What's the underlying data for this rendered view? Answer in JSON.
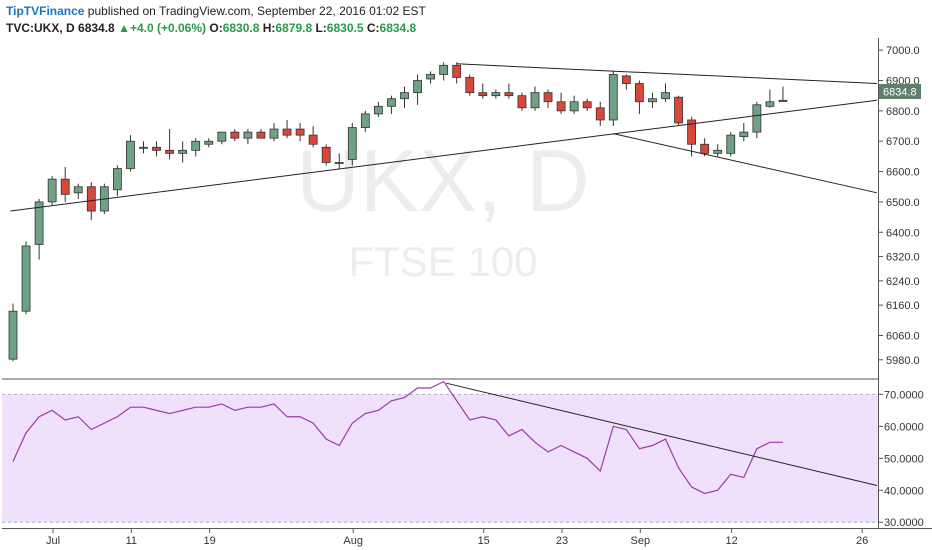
{
  "header": {
    "publisher": "TipTVFinance",
    "published_text": " published on TradingView.com, September 22, 2016 01:02 EST",
    "symbol": "TVC:UKX, D",
    "last": "6834.8",
    "change_icon": "triangle-up-icon",
    "change": "+4.0 (+0.06%)",
    "o_label": "O:",
    "o_val": "6830.8",
    "h_label": "H:",
    "h_val": "6879.8",
    "l_label": "L:",
    "l_val": "6830.5",
    "c_label": "C:",
    "c_val": "6834.8"
  },
  "watermark": {
    "title": "UKX, D",
    "subtitle": "FTSE 100"
  },
  "price_label": "6834.8",
  "colors": {
    "up": "#6fa285",
    "down": "#d9473b",
    "rsi_line": "#9e3aa8",
    "rsi_band": "#efe0fb",
    "last_label": "#5f7f6a"
  },
  "chart_data": [
    {
      "type": "candlestick",
      "title": "UKX, D",
      "subtitle": "FTSE 100",
      "ylim": [
        5920,
        7040
      ],
      "y_ticks": [
        "7000.0",
        "6900.0",
        "6800.0",
        "6700.0",
        "6600.0",
        "6500.0",
        "6400.0",
        "6320.0",
        "6240.0",
        "6160.0",
        "6060.0",
        "5980.0"
      ],
      "x_ticks": [
        {
          "label": "Jul",
          "index": 1
        },
        {
          "label": "11",
          "index": 7
        },
        {
          "label": "19",
          "index": 13
        },
        {
          "label": "Aug",
          "index": 24
        },
        {
          "label": "15",
          "index": 34
        },
        {
          "label": "23",
          "index": 40
        },
        {
          "label": "Sep",
          "index": 46
        },
        {
          "label": "12",
          "index": 53
        },
        {
          "label": "26",
          "index": 63
        }
      ],
      "candles": [
        {
          "o": 5982,
          "h": 6165,
          "l": 5975,
          "c": 6140
        },
        {
          "o": 6140,
          "h": 6370,
          "l": 6130,
          "c": 6355
        },
        {
          "o": 6360,
          "h": 6510,
          "l": 6310,
          "c": 6500
        },
        {
          "o": 6500,
          "h": 6585,
          "l": 6490,
          "c": 6575
        },
        {
          "o": 6575,
          "h": 6615,
          "l": 6500,
          "c": 6525
        },
        {
          "o": 6530,
          "h": 6560,
          "l": 6510,
          "c": 6550
        },
        {
          "o": 6550,
          "h": 6565,
          "l": 6440,
          "c": 6470
        },
        {
          "o": 6470,
          "h": 6560,
          "l": 6460,
          "c": 6550
        },
        {
          "o": 6540,
          "h": 6620,
          "l": 6520,
          "c": 6610
        },
        {
          "o": 6610,
          "h": 6720,
          "l": 6600,
          "c": 6700
        },
        {
          "o": 6680,
          "h": 6700,
          "l": 6660,
          "c": 6680
        },
        {
          "o": 6680,
          "h": 6700,
          "l": 6650,
          "c": 6670
        },
        {
          "o": 6670,
          "h": 6740,
          "l": 6640,
          "c": 6660
        },
        {
          "o": 6660,
          "h": 6700,
          "l": 6630,
          "c": 6670
        },
        {
          "o": 6670,
          "h": 6710,
          "l": 6650,
          "c": 6700
        },
        {
          "o": 6690,
          "h": 6710,
          "l": 6680,
          "c": 6700
        },
        {
          "o": 6700,
          "h": 6730,
          "l": 6690,
          "c": 6730
        },
        {
          "o": 6730,
          "h": 6740,
          "l": 6700,
          "c": 6710
        },
        {
          "o": 6710,
          "h": 6740,
          "l": 6690,
          "c": 6730
        },
        {
          "o": 6730,
          "h": 6740,
          "l": 6710,
          "c": 6710
        },
        {
          "o": 6710,
          "h": 6760,
          "l": 6700,
          "c": 6740
        },
        {
          "o": 6740,
          "h": 6770,
          "l": 6710,
          "c": 6720
        },
        {
          "o": 6740,
          "h": 6760,
          "l": 6700,
          "c": 6720
        },
        {
          "o": 6720,
          "h": 6750,
          "l": 6680,
          "c": 6690
        },
        {
          "o": 6680,
          "h": 6690,
          "l": 6620,
          "c": 6630
        },
        {
          "o": 6630,
          "h": 6660,
          "l": 6610,
          "c": 6630
        },
        {
          "o": 6640,
          "h": 6760,
          "l": 6620,
          "c": 6745
        },
        {
          "o": 6745,
          "h": 6800,
          "l": 6730,
          "c": 6790
        },
        {
          "o": 6790,
          "h": 6830,
          "l": 6780,
          "c": 6815
        },
        {
          "o": 6815,
          "h": 6850,
          "l": 6790,
          "c": 6840
        },
        {
          "o": 6840,
          "h": 6880,
          "l": 6810,
          "c": 6860
        },
        {
          "o": 6860,
          "h": 6920,
          "l": 6820,
          "c": 6900
        },
        {
          "o": 6905,
          "h": 6930,
          "l": 6890,
          "c": 6920
        },
        {
          "o": 6920,
          "h": 6960,
          "l": 6900,
          "c": 6950
        },
        {
          "o": 6950,
          "h": 6960,
          "l": 6890,
          "c": 6910
        },
        {
          "o": 6910,
          "h": 6920,
          "l": 6850,
          "c": 6860
        },
        {
          "o": 6860,
          "h": 6890,
          "l": 6840,
          "c": 6850
        },
        {
          "o": 6850,
          "h": 6870,
          "l": 6840,
          "c": 6860
        },
        {
          "o": 6860,
          "h": 6890,
          "l": 6840,
          "c": 6850
        },
        {
          "o": 6850,
          "h": 6860,
          "l": 6800,
          "c": 6810
        },
        {
          "o": 6810,
          "h": 6880,
          "l": 6800,
          "c": 6860
        },
        {
          "o": 6860,
          "h": 6870,
          "l": 6810,
          "c": 6830
        },
        {
          "o": 6830,
          "h": 6860,
          "l": 6790,
          "c": 6800
        },
        {
          "o": 6800,
          "h": 6850,
          "l": 6790,
          "c": 6830
        },
        {
          "o": 6830,
          "h": 6840,
          "l": 6800,
          "c": 6810
        },
        {
          "o": 6810,
          "h": 6830,
          "l": 6750,
          "c": 6770
        },
        {
          "o": 6770,
          "h": 6930,
          "l": 6750,
          "c": 6920
        },
        {
          "o": 6915,
          "h": 6920,
          "l": 6870,
          "c": 6890
        },
        {
          "o": 6890,
          "h": 6900,
          "l": 6790,
          "c": 6830
        },
        {
          "o": 6830,
          "h": 6860,
          "l": 6810,
          "c": 6840
        },
        {
          "o": 6840,
          "h": 6890,
          "l": 6830,
          "c": 6860
        },
        {
          "o": 6845,
          "h": 6850,
          "l": 6750,
          "c": 6760
        },
        {
          "o": 6770,
          "h": 6780,
          "l": 6650,
          "c": 6690
        },
        {
          "o": 6690,
          "h": 6710,
          "l": 6650,
          "c": 6660
        },
        {
          "o": 6660,
          "h": 6690,
          "l": 6650,
          "c": 6670
        },
        {
          "o": 6660,
          "h": 6730,
          "l": 6650,
          "c": 6720
        },
        {
          "o": 6715,
          "h": 6760,
          "l": 6700,
          "c": 6730
        },
        {
          "o": 6730,
          "h": 6830,
          "l": 6710,
          "c": 6820
        },
        {
          "o": 6815,
          "h": 6870,
          "l": 6810,
          "c": 6830
        },
        {
          "o": 6830.8,
          "h": 6879.8,
          "l": 6830.5,
          "c": 6834.8
        }
      ],
      "trendlines": [
        {
          "from": {
            "index": -0.2,
            "value": 6470
          },
          "to": {
            "index": 66.2,
            "value": 6835
          }
        },
        {
          "from": {
            "index": 34,
            "value": 6955
          },
          "to": {
            "index": 66.2,
            "value": 6890
          }
        },
        {
          "from": {
            "index": 46,
            "value": 6725
          },
          "to": {
            "index": 66.2,
            "value": 6530
          }
        }
      ]
    },
    {
      "type": "line",
      "name": "RSI",
      "ylim": [
        28.5,
        74.5
      ],
      "y_ticks": [
        "70.0000",
        "60.0000",
        "50.0000",
        "40.0000",
        "30.0000"
      ],
      "band": [
        30,
        70
      ],
      "values": [
        49,
        58,
        63,
        65,
        62,
        63,
        59,
        61,
        63,
        66,
        66,
        65,
        64,
        65,
        66,
        66,
        67,
        65,
        66,
        66,
        67,
        63,
        63,
        61,
        56,
        54,
        61,
        64,
        65,
        68,
        69,
        72,
        72,
        74,
        68,
        62,
        63,
        62,
        57,
        59,
        55,
        52,
        54,
        52,
        50,
        46,
        60,
        59,
        53,
        54,
        56,
        47,
        41,
        39,
        40,
        45,
        44,
        53,
        55,
        55
      ],
      "trendline": {
        "from": {
          "index": 33.2,
          "value": 73.5
        },
        "to": {
          "index": 66.2,
          "value": 41.5
        }
      }
    }
  ]
}
